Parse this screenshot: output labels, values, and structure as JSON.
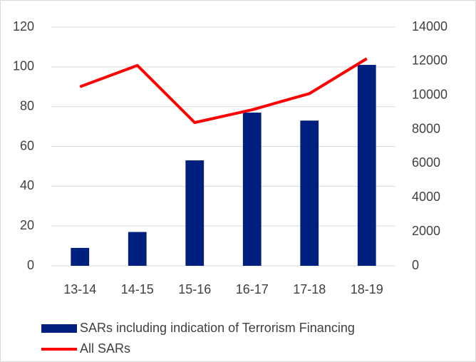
{
  "chart_data": {
    "type": "bar",
    "categories": [
      "13-14",
      "14-15",
      "15-16",
      "16-17",
      "17-18",
      "18-19"
    ],
    "series": [
      {
        "name": "SARs including indication of Terrorism Financing",
        "type": "bar",
        "color": "#002080",
        "values": [
          9,
          17,
          53,
          77,
          73,
          101
        ]
      },
      {
        "name": "All SARs",
        "type": "line",
        "axis": "y2",
        "color": "#ff0000",
        "values": [
          10500,
          11750,
          8400,
          9150,
          10100,
          12150
        ]
      }
    ],
    "ylim": [
      0,
      120
    ],
    "yticks": [
      0,
      20,
      40,
      60,
      80,
      100,
      120
    ],
    "y2lim": [
      0,
      14000
    ],
    "y2ticks": [
      0,
      2000,
      4000,
      6000,
      8000,
      10000,
      12000,
      14000
    ],
    "grid": true,
    "legend": "bottom"
  }
}
